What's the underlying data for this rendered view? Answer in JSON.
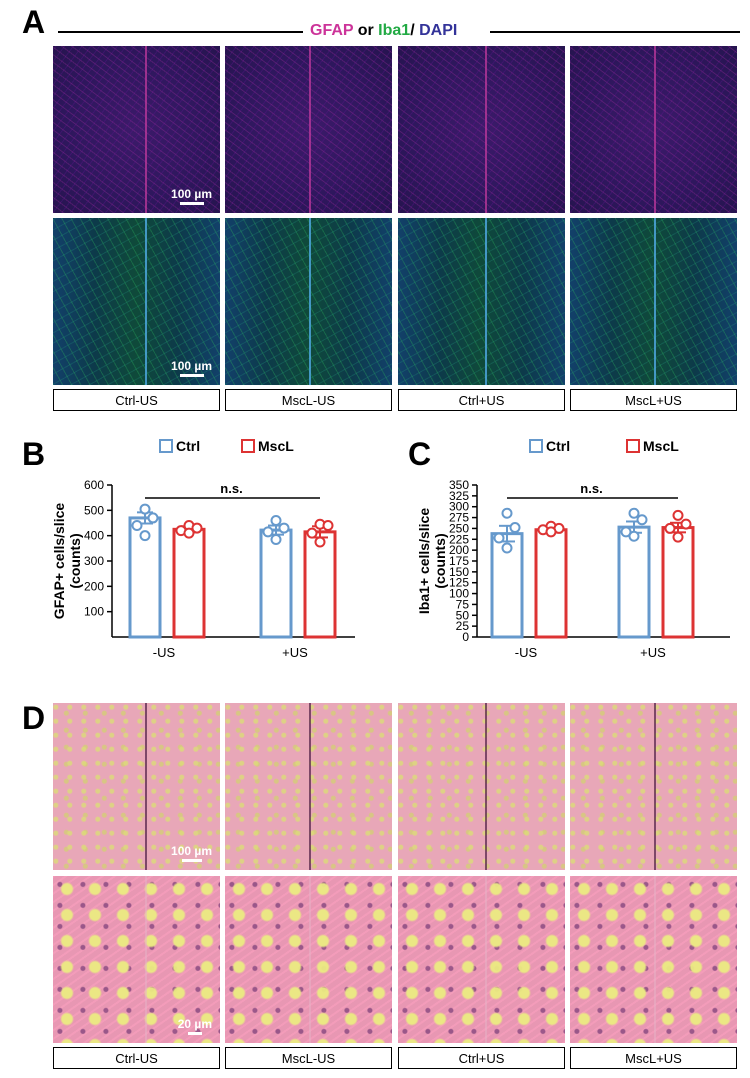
{
  "panels": {
    "a": {
      "letter": "A",
      "title_parts": [
        {
          "text": "GFAP",
          "color": "#cc3399"
        },
        {
          "text": " or ",
          "color": "#000000"
        },
        {
          "text": "Iba1",
          "color": "#22aa44"
        },
        {
          "text": "/ ",
          "color": "#000000"
        },
        {
          "text": "DAPI",
          "color": "#333399"
        }
      ],
      "scale_bar": "100 µm"
    },
    "b": {
      "letter": "B"
    },
    "c": {
      "letter": "C"
    },
    "d": {
      "letter": "D",
      "scale_bar_low": "100 µm",
      "scale_bar_high": "20 µm"
    }
  },
  "group_labels": [
    "Ctrl-US",
    "MscL-US",
    "Ctrl+US",
    "MscL+US"
  ],
  "colors": {
    "ctrl": "#6699cc",
    "mscl": "#dd3333"
  },
  "chart_data": [
    {
      "type": "bar",
      "panel": "B",
      "categories": [
        "-US",
        "+US"
      ],
      "ylabel": "GFAP+ cells/slice",
      "ylabel2": "(counts)",
      "ylim": [
        0,
        600
      ],
      "yticks": [
        100,
        200,
        300,
        400,
        500,
        600
      ],
      "legend": [
        "Ctrl",
        "MscL"
      ],
      "annotation": "n.s.",
      "series": [
        {
          "name": "Ctrl",
          "values": [
            470,
            422
          ],
          "sem": [
            22,
            18
          ],
          "points": [
            [
              505,
              470,
              440,
              400
            ],
            [
              460,
              430,
              415,
              385
            ]
          ]
        },
        {
          "name": "MscL",
          "values": [
            425,
            415
          ],
          "sem": [
            12,
            22
          ],
          "points": [
            [
              440,
              430,
              420,
              410
            ],
            [
              445,
              440,
              410,
              375
            ]
          ]
        }
      ]
    },
    {
      "type": "bar",
      "panel": "C",
      "categories": [
        "-US",
        "+US"
      ],
      "ylabel": "Iba1+ cells/slice",
      "ylabel2": "(counts)",
      "ylim": [
        0,
        350
      ],
      "yticks": [
        0,
        25,
        50,
        75,
        100,
        125,
        150,
        175,
        200,
        225,
        250,
        275,
        300,
        325,
        350
      ],
      "legend": [
        "Ctrl",
        "MscL"
      ],
      "annotation": "n.s.",
      "series": [
        {
          "name": "Ctrl",
          "values": [
            238,
            253
          ],
          "sem": [
            18,
            13
          ],
          "points": [
            [
              285,
              252,
              228,
              205
            ],
            [
              285,
              270,
              242,
              232
            ]
          ]
        },
        {
          "name": "MscL",
          "values": [
            247,
            252
          ],
          "sem": [
            6,
            11
          ],
          "points": [
            [
              255,
              250,
              247,
              242
            ],
            [
              280,
              260,
              250,
              230
            ]
          ]
        }
      ]
    }
  ]
}
